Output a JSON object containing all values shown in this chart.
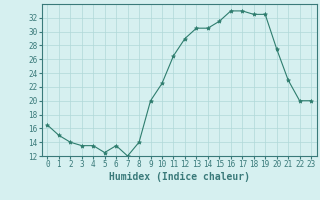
{
  "x": [
    0,
    1,
    2,
    3,
    4,
    5,
    6,
    7,
    8,
    9,
    10,
    11,
    12,
    13,
    14,
    15,
    16,
    17,
    18,
    19,
    20,
    21,
    22,
    23
  ],
  "y": [
    16.5,
    15.0,
    14.0,
    13.5,
    13.5,
    12.5,
    13.5,
    12.0,
    14.0,
    20.0,
    22.5,
    26.5,
    29.0,
    30.5,
    30.5,
    31.5,
    33.0,
    33.0,
    32.5,
    32.5,
    27.5,
    23.0,
    20.0,
    20.0
  ],
  "line_color": "#2e7d6e",
  "marker": "*",
  "marker_size": 3,
  "bg_color": "#d6f0f0",
  "grid_color": "#b0d8d8",
  "xlabel": "Humidex (Indice chaleur)",
  "ylim": [
    12,
    34
  ],
  "xlim": [
    -0.5,
    23.5
  ],
  "yticks": [
    12,
    14,
    16,
    18,
    20,
    22,
    24,
    26,
    28,
    30,
    32
  ],
  "xticks": [
    0,
    1,
    2,
    3,
    4,
    5,
    6,
    7,
    8,
    9,
    10,
    11,
    12,
    13,
    14,
    15,
    16,
    17,
    18,
    19,
    20,
    21,
    22,
    23
  ],
  "tick_label_fontsize": 5.5,
  "xlabel_fontsize": 7,
  "spine_color": "#3a7a7a"
}
